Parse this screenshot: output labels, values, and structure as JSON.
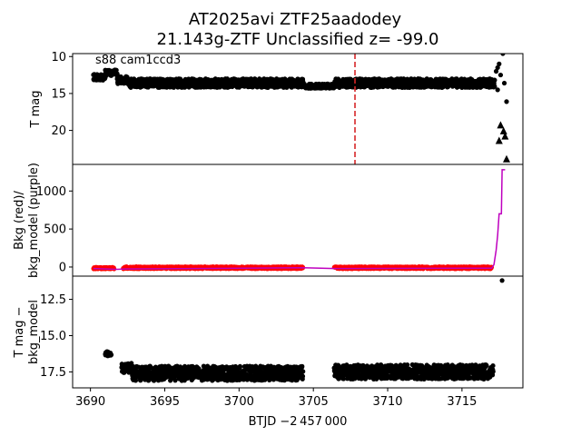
{
  "chart_data": {
    "type": "scatter",
    "title_line1": "AT2025avi  ZTF25aadodey",
    "title_line2": "21.143g-ZTF Unclassified z= -99.0",
    "xlabel": "BTJD −2 457 000",
    "xlim": [
      3688.8,
      3719.1
    ],
    "xticks": [
      3690,
      3695,
      3700,
      3705,
      3710,
      3715
    ],
    "xtick_labels": [
      "3690",
      "3695",
      "3700",
      "3705",
      "3710",
      "3715"
    ],
    "panels": [
      {
        "ylabel": [
          "T mag"
        ],
        "ylim": [
          24.6,
          9.6
        ],
        "inverted_y": true,
        "yticks": [
          10,
          15,
          20
        ],
        "ytick_labels": [
          "10",
          "15",
          "20"
        ],
        "annotation": "s88 cam1ccd3",
        "event_line_x": 3707.8,
        "event_line_color": "#d62728",
        "band_segments": [
          {
            "x0": 3690.2,
            "x1": 3691.0,
            "y": 12.8,
            "spread": 0.8
          },
          {
            "x0": 3691.0,
            "x1": 3691.8,
            "y": 12.2,
            "spread": 0.8
          },
          {
            "x0": 3691.8,
            "x1": 3692.5,
            "y": 13.2,
            "spread": 1.0
          },
          {
            "x0": 3692.5,
            "x1": 3704.3,
            "y": 13.6,
            "spread": 1.2
          },
          {
            "x0": 3704.3,
            "x1": 3706.4,
            "y": 14.0,
            "spread": 0.6
          },
          {
            "x0": 3706.4,
            "x1": 3717.2,
            "y": 13.6,
            "spread": 1.2
          }
        ],
        "flare_points": [
          {
            "x": 3717.2,
            "y": 13.2
          },
          {
            "x": 3717.3,
            "y": 12.0
          },
          {
            "x": 3717.4,
            "y": 11.5
          },
          {
            "x": 3717.5,
            "y": 11.0
          },
          {
            "x": 3717.6,
            "y": 12.5
          },
          {
            "x": 3717.4,
            "y": 14.5
          },
          {
            "x": 3717.75,
            "y": 9.6
          },
          {
            "x": 3717.85,
            "y": 13.6
          },
          {
            "x": 3718.0,
            "y": 16.1
          }
        ],
        "upper_limits": [
          {
            "x": 3717.6,
            "y": 19.3
          },
          {
            "x": 3717.8,
            "y": 20.1
          },
          {
            "x": 3717.9,
            "y": 20.8
          },
          {
            "x": 3717.5,
            "y": 21.4
          },
          {
            "x": 3718.0,
            "y": 23.9
          }
        ],
        "marker_color": "#000000"
      },
      {
        "ylabel": [
          "Bkg (red)/",
          "bkg_model (purple)"
        ],
        "ylim": [
          -120,
          1350
        ],
        "yticks": [
          0,
          500,
          1000
        ],
        "ytick_labels": [
          "0",
          "500",
          "1000"
        ],
        "bkg_color": "#ff0000",
        "model_color": "#bf00bf",
        "bkg_segments": [
          {
            "x0": 3690.2,
            "x1": 3691.6,
            "y": -15,
            "spread": 25
          },
          {
            "x0": 3692.2,
            "x1": 3704.3,
            "y": -10,
            "spread": 30
          },
          {
            "x0": 3706.4,
            "x1": 3717.0,
            "y": -10,
            "spread": 30
          }
        ],
        "model_curve": [
          {
            "x": 3690.2,
            "y": -20
          },
          {
            "x": 3691.8,
            "y": -30
          },
          {
            "x": 3692.3,
            "y": -25
          },
          {
            "x": 3704.3,
            "y": -10
          },
          {
            "x": 3706.4,
            "y": -20
          },
          {
            "x": 3717.0,
            "y": -15
          },
          {
            "x": 3717.15,
            "y": 30
          },
          {
            "x": 3717.3,
            "y": 220
          },
          {
            "x": 3717.4,
            "y": 420
          },
          {
            "x": 3717.5,
            "y": 700
          },
          {
            "x": 3717.65,
            "y": 700
          },
          {
            "x": 3717.7,
            "y": 1280
          },
          {
            "x": 3717.9,
            "y": 1280
          }
        ]
      },
      {
        "ylabel": [
          "T mag −",
          "bkg_model"
        ],
        "ylim": [
          18.6,
          10.9
        ],
        "inverted_y": true,
        "yticks": [
          12.5,
          15.0,
          17.5
        ],
        "ytick_labels": [
          "12.5",
          "15.0",
          "17.5"
        ],
        "band_segments": [
          {
            "x0": 3691.0,
            "x1": 3691.4,
            "y": 16.25,
            "spread": 0.3
          },
          {
            "x0": 3692.1,
            "x1": 3692.8,
            "y": 17.2,
            "spread": 0.7
          },
          {
            "x0": 3692.8,
            "x1": 3704.3,
            "y": 17.6,
            "spread": 1.0
          },
          {
            "x0": 3706.4,
            "x1": 3717.1,
            "y": 17.5,
            "spread": 1.0
          }
        ],
        "flare_points": [
          {
            "x": 3717.7,
            "y": 11.2
          }
        ],
        "marker_color": "#000000"
      }
    ]
  }
}
